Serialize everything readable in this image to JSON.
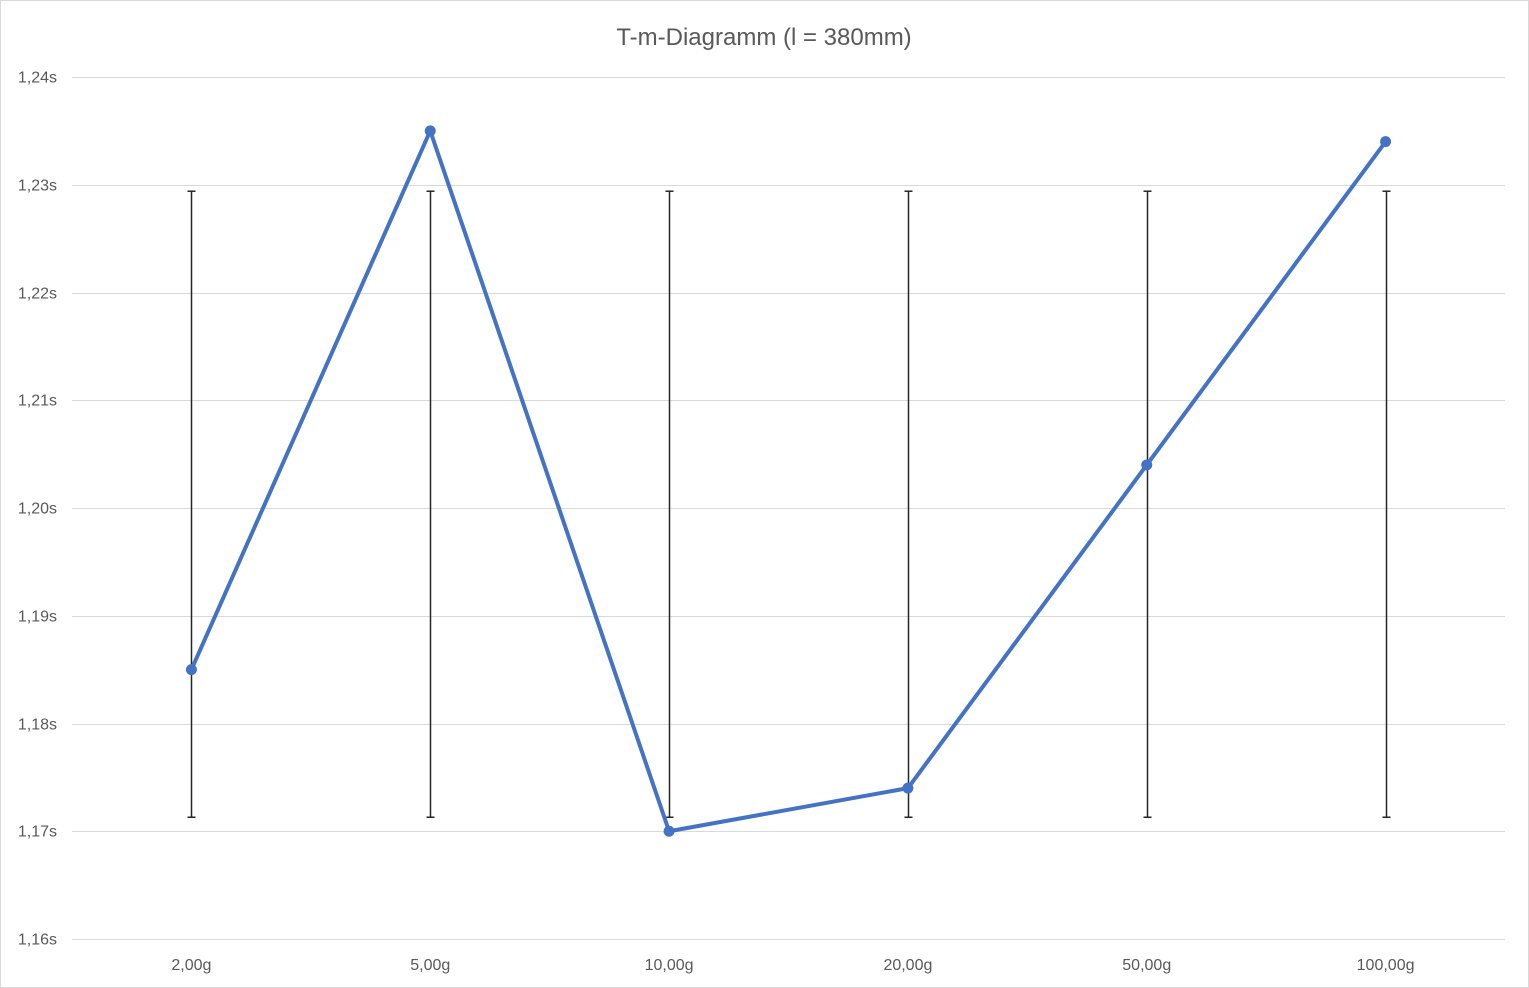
{
  "chart_data": {
    "type": "line",
    "title": "T-m-Diagramm (l = 380mm)",
    "xlabel": "",
    "ylabel": "",
    "categories": [
      "2,00g",
      "5,00g",
      "10,00g",
      "20,00g",
      "50,00g",
      "100,00g"
    ],
    "series": [
      {
        "values": [
          1.185,
          1.235,
          1.17,
          1.174,
          1.204,
          1.234
        ],
        "error_bars": {
          "lower": [
            1.1713,
            1.1713,
            1.1713,
            1.1713,
            1.1713,
            1.1713
          ],
          "upper": [
            1.2294,
            1.2294,
            1.2294,
            1.2294,
            1.2294,
            1.2294
          ]
        }
      }
    ],
    "ylim": [
      1.16,
      1.24
    ],
    "yticks": [
      1.16,
      1.17,
      1.18,
      1.19,
      1.2,
      1.21,
      1.22,
      1.23,
      1.24
    ],
    "ytick_labels": [
      "1,16s",
      "1,17s",
      "1,18s",
      "1,19s",
      "1,20s",
      "1,21s",
      "1,22s",
      "1,23s",
      "1,24s"
    ],
    "grid": true,
    "legend": "none",
    "colors": {
      "line": "#4472c4",
      "error_bar": "#262626",
      "grid": "#d9d9d9",
      "text": "#595959"
    }
  }
}
